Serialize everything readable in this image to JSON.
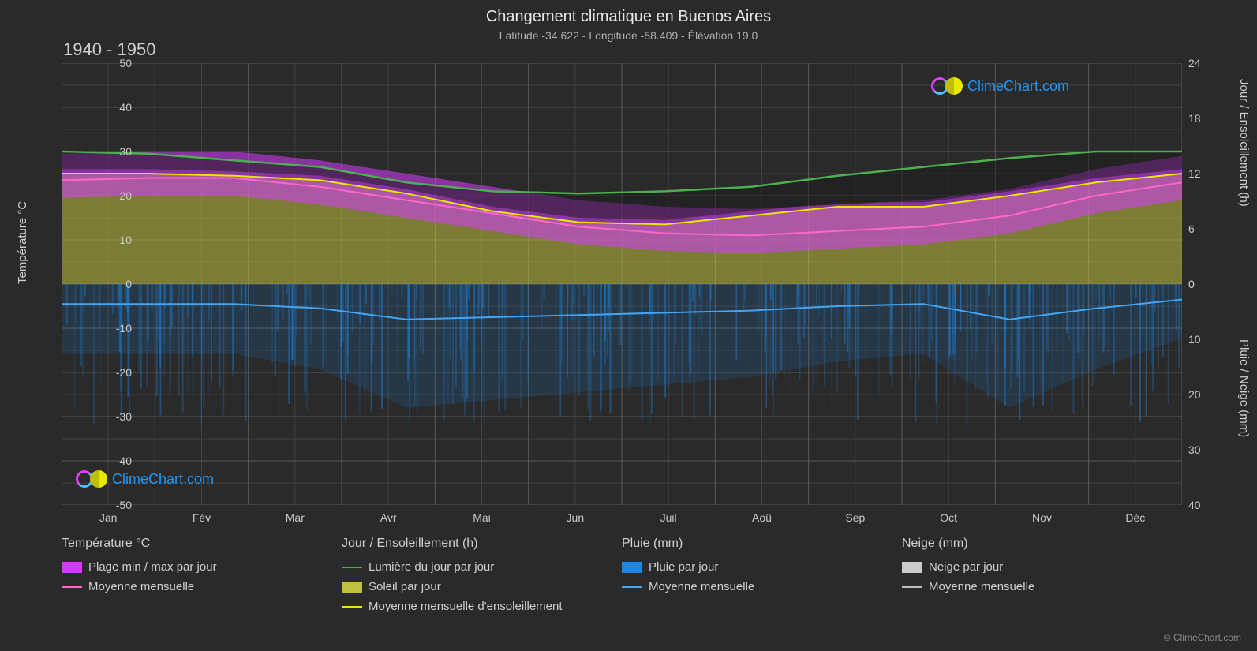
{
  "title": "Changement climatique en Buenos Aires",
  "subtitle": "Latitude -34.622 - Longitude -58.409 - Élévation 19.0",
  "period": "1940 - 1950",
  "brand": "ClimeChart.com",
  "copyright": "© ClimeChart.com",
  "chart": {
    "type": "line",
    "background_color": "#2a2a2a",
    "plot_bg": "#2a2a2a",
    "grid_color": "#5a5a5a",
    "grid_minor_color": "#404040",
    "x_labels": [
      "Jan",
      "Fév",
      "Mar",
      "Avr",
      "Mai",
      "Jun",
      "Juil",
      "Aoû",
      "Sep",
      "Oct",
      "Nov",
      "Déc"
    ],
    "y_left": {
      "title": "Température °C",
      "min": -50,
      "max": 50,
      "step": 10
    },
    "y_right_top": {
      "title": "Jour / Ensoleillement (h)",
      "min": 0,
      "max": 24,
      "step": 6
    },
    "y_right_bot": {
      "title": "Pluie / Neige (mm)",
      "min": 0,
      "max": 40,
      "step": 10
    },
    "series": {
      "daylight_green": {
        "color": "#4caf50",
        "values": [
          30,
          29.5,
          28,
          26.5,
          23,
          21,
          20.5,
          21,
          22,
          24.5,
          26.5,
          28.5,
          30,
          30
        ]
      },
      "sun_yellow": {
        "color": "#e8e800",
        "values": [
          25,
          25,
          24.5,
          23.5,
          20.5,
          16.5,
          14,
          13.5,
          15.5,
          17.5,
          17.5,
          20,
          23,
          25
        ]
      },
      "temp_pink": {
        "color": "#ff66cc",
        "values": [
          23.5,
          24,
          24,
          22,
          19,
          16,
          13,
          11.5,
          11,
          12,
          13,
          15.5,
          20,
          23
        ]
      },
      "rain_blue": {
        "color": "#42a5f5",
        "values": [
          -4.5,
          -4.5,
          -4.5,
          -5.5,
          -8,
          -7.5,
          -7,
          -6.5,
          -6,
          -5,
          -4.5,
          -8,
          -5.5,
          -3.5
        ]
      },
      "snow_grey": {
        "color": "#c0c0c0"
      },
      "temp_band": {
        "color": "#d63aff",
        "opacity": 0.55
      },
      "sun_band": {
        "color": "#bfbf3f",
        "opacity": 0.55
      },
      "rain_band": {
        "color": "#1e88e5",
        "opacity": 0.4
      }
    }
  },
  "legend": {
    "col1": {
      "title": "Température °C",
      "items": [
        {
          "swatch": "#d63aff",
          "kind": "box",
          "label": "Plage min / max par jour"
        },
        {
          "swatch": "#ff66cc",
          "kind": "line",
          "label": "Moyenne mensuelle"
        }
      ]
    },
    "col2": {
      "title": "Jour / Ensoleillement (h)",
      "items": [
        {
          "swatch": "#4caf50",
          "kind": "line",
          "label": "Lumière du jour par jour"
        },
        {
          "swatch": "#bfbf3f",
          "kind": "box",
          "label": "Soleil par jour"
        },
        {
          "swatch": "#e8e800",
          "kind": "line",
          "label": "Moyenne mensuelle d'ensoleillement"
        }
      ]
    },
    "col3": {
      "title": "Pluie (mm)",
      "items": [
        {
          "swatch": "#1e88e5",
          "kind": "box",
          "label": "Pluie par jour"
        },
        {
          "swatch": "#42a5f5",
          "kind": "line",
          "label": "Moyenne mensuelle"
        }
      ]
    },
    "col4": {
      "title": "Neige (mm)",
      "items": [
        {
          "swatch": "#cccccc",
          "kind": "box",
          "label": "Neige par jour"
        },
        {
          "swatch": "#c0c0c0",
          "kind": "line",
          "label": "Moyenne mensuelle"
        }
      ]
    }
  }
}
